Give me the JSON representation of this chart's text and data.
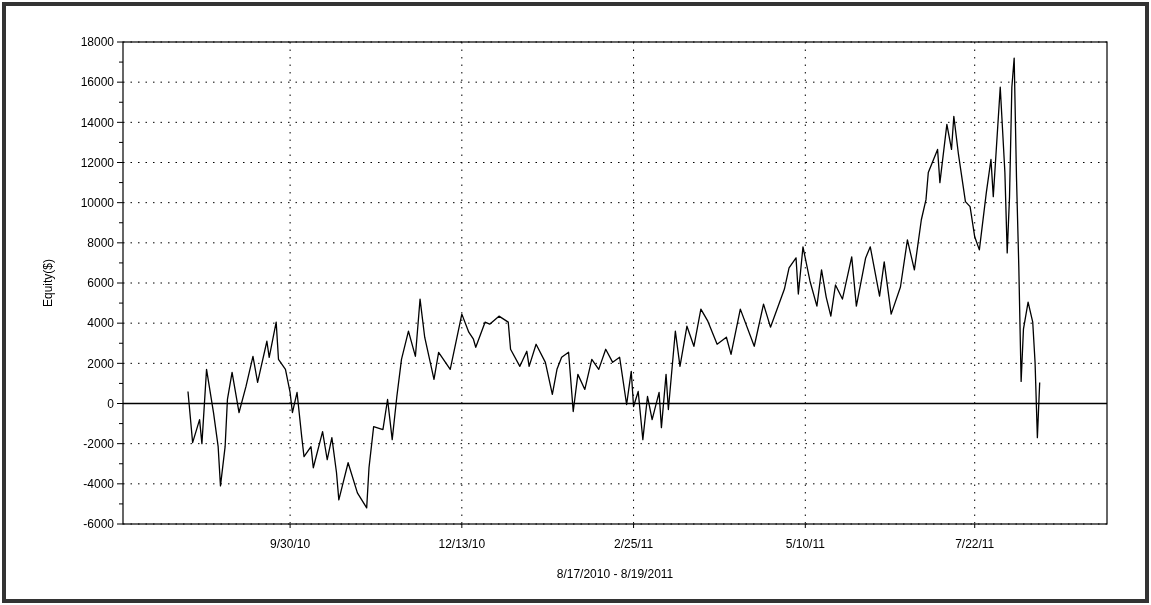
{
  "chart_data": {
    "type": "line",
    "xlabel": "8/17/2010 - 8/19/2011",
    "ylabel": "Equity($)",
    "xlim": [
      "2010-07-20",
      "2011-09-17"
    ],
    "xticks": [
      {
        "value": "2010-09-30",
        "label": "9/30/10"
      },
      {
        "value": "2010-12-13",
        "label": "12/13/10"
      },
      {
        "value": "2011-02-25",
        "label": "2/25/11"
      },
      {
        "value": "2011-05-10",
        "label": "5/10/11"
      },
      {
        "value": "2011-07-22",
        "label": "7/22/11"
      }
    ],
    "ylim": [
      -6000,
      18000
    ],
    "yticks": [
      -6000,
      {
        "value": -5000,
        "label": null
      },
      -4000,
      {
        "value": -3000,
        "label": null
      },
      -2000,
      {
        "value": -1000,
        "label": null
      },
      0,
      {
        "value": 1000,
        "label": null
      },
      2000,
      {
        "value": 3000,
        "label": null
      },
      4000,
      {
        "value": 5000,
        "label": null
      },
      6000,
      {
        "value": 7000,
        "label": null
      },
      8000,
      {
        "value": 9000,
        "label": null
      },
      10000,
      {
        "value": 11000,
        "label": null
      },
      12000,
      {
        "value": 13000,
        "label": null
      },
      14000,
      {
        "value": 15000,
        "label": null
      },
      16000,
      {
        "value": 17000,
        "label": null
      },
      18000
    ],
    "grid": true,
    "marker": "none",
    "line_style": "solid",
    "ref_lines": [
      {
        "axis": "y",
        "value": 0,
        "color": "#000000",
        "line_style": "solid"
      }
    ],
    "series": [
      {
        "color": "#000000",
        "x": [
          "2010-08-17",
          "2010-08-19",
          "2010-08-22",
          "2010-08-23",
          "2010-08-25",
          "2010-08-28",
          "2010-08-30",
          "2010-08-31",
          "2010-09-02",
          "2010-09-03",
          "2010-09-05",
          "2010-09-08",
          "2010-09-11",
          "2010-09-14",
          "2010-09-16",
          "2010-09-20",
          "2010-09-21",
          "2010-09-24",
          "2010-09-25",
          "2010-09-28",
          "2010-09-30",
          "2010-10-01",
          "2010-10-03",
          "2010-10-05",
          "2010-10-06",
          "2010-10-09",
          "2010-10-10",
          "2010-10-14",
          "2010-10-16",
          "2010-10-18",
          "2010-10-20",
          "2010-10-21",
          "2010-10-25",
          "2010-10-29",
          "2010-11-02",
          "2010-11-03",
          "2010-11-05",
          "2010-11-09",
          "2010-11-11",
          "2010-11-13",
          "2010-11-15",
          "2010-11-17",
          "2010-11-20",
          "2010-11-23",
          "2010-11-25",
          "2010-11-27",
          "2010-12-01",
          "2010-12-03",
          "2010-12-08",
          "2010-12-13",
          "2010-12-16",
          "2010-12-18",
          "2010-12-19",
          "2010-12-23",
          "2010-12-25",
          "2010-12-29",
          "2011-01-02",
          "2011-01-03",
          "2011-01-07",
          "2011-01-10",
          "2011-01-11",
          "2011-01-14",
          "2011-01-18",
          "2011-01-21",
          "2011-01-23",
          "2011-01-25",
          "2011-01-28",
          "2011-01-30",
          "2011-02-01",
          "2011-02-04",
          "2011-02-07",
          "2011-02-10",
          "2011-02-13",
          "2011-02-16",
          "2011-02-19",
          "2011-02-22",
          "2011-02-24",
          "2011-02-25",
          "2011-02-27",
          "2011-03-01",
          "2011-03-03",
          "2011-03-05",
          "2011-03-08",
          "2011-03-09",
          "2011-03-11",
          "2011-03-12",
          "2011-03-15",
          "2011-03-17",
          "2011-03-20",
          "2011-03-23",
          "2011-03-26",
          "2011-03-29",
          "2011-04-02",
          "2011-04-06",
          "2011-04-08",
          "2011-04-12",
          "2011-04-18",
          "2011-04-22",
          "2011-04-25",
          "2011-05-01",
          "2011-05-03",
          "2011-05-06",
          "2011-05-07",
          "2011-05-09",
          "2011-05-12",
          "2011-05-15",
          "2011-05-17",
          "2011-05-19",
          "2011-05-21",
          "2011-05-23",
          "2011-05-26",
          "2011-05-30",
          "2011-06-01",
          "2011-06-05",
          "2011-06-07",
          "2011-06-11",
          "2011-06-13",
          "2011-06-16",
          "2011-06-20",
          "2011-06-23",
          "2011-06-26",
          "2011-06-29",
          "2011-07-01",
          "2011-07-02",
          "2011-07-06",
          "2011-07-07",
          "2011-07-10",
          "2011-07-12",
          "2011-07-13",
          "2011-07-15",
          "2011-07-18",
          "2011-07-20",
          "2011-07-22",
          "2011-07-24",
          "2011-07-27",
          "2011-07-29",
          "2011-07-30",
          "2011-08-02",
          "2011-08-04",
          "2011-08-05",
          "2011-08-06",
          "2011-08-07",
          "2011-08-08",
          "2011-08-09",
          "2011-08-10",
          "2011-08-11",
          "2011-08-12",
          "2011-08-14",
          "2011-08-16",
          "2011-08-17",
          "2011-08-18",
          "2011-08-19"
        ],
        "values": [
          600,
          -1950,
          -800,
          -2000,
          1700,
          -450,
          -2150,
          -4100,
          -2150,
          200,
          1550,
          -450,
          850,
          2350,
          1050,
          3100,
          2300,
          4050,
          2200,
          1700,
          550,
          -450,
          550,
          -1650,
          -2650,
          -2150,
          -3200,
          -1400,
          -2800,
          -1700,
          -3450,
          -4800,
          -2950,
          -4450,
          -5200,
          -3200,
          -1150,
          -1300,
          200,
          -1800,
          350,
          2200,
          3600,
          2350,
          5200,
          3300,
          1200,
          2550,
          1700,
          4450,
          3550,
          3200,
          2800,
          4050,
          3950,
          4350,
          4050,
          2700,
          1850,
          2600,
          1850,
          2950,
          2050,
          450,
          1700,
          2300,
          2550,
          -400,
          1450,
          700,
          2200,
          1700,
          2700,
          2050,
          2300,
          -50,
          1600,
          -150,
          600,
          -1800,
          350,
          -800,
          550,
          -1200,
          1450,
          -300,
          3600,
          1850,
          3850,
          2850,
          4700,
          4100,
          2950,
          3300,
          2450,
          4700,
          2850,
          4950,
          3800,
          5700,
          6750,
          7250,
          5450,
          7800,
          6100,
          4850,
          6650,
          5300,
          4350,
          5900,
          5200,
          7300,
          4850,
          7250,
          7800,
          5350,
          7050,
          4450,
          5800,
          8150,
          6650,
          9150,
          10150,
          11500,
          12650,
          11000,
          13900,
          12650,
          14300,
          12400,
          10050,
          9800,
          8300,
          7650,
          10500,
          12150,
          10300,
          15750,
          11500,
          7500,
          10300,
          15750,
          17200,
          11250,
          6800,
          1100,
          3700,
          5050,
          4050,
          2050,
          -1700,
          1050
        ]
      }
    ]
  }
}
